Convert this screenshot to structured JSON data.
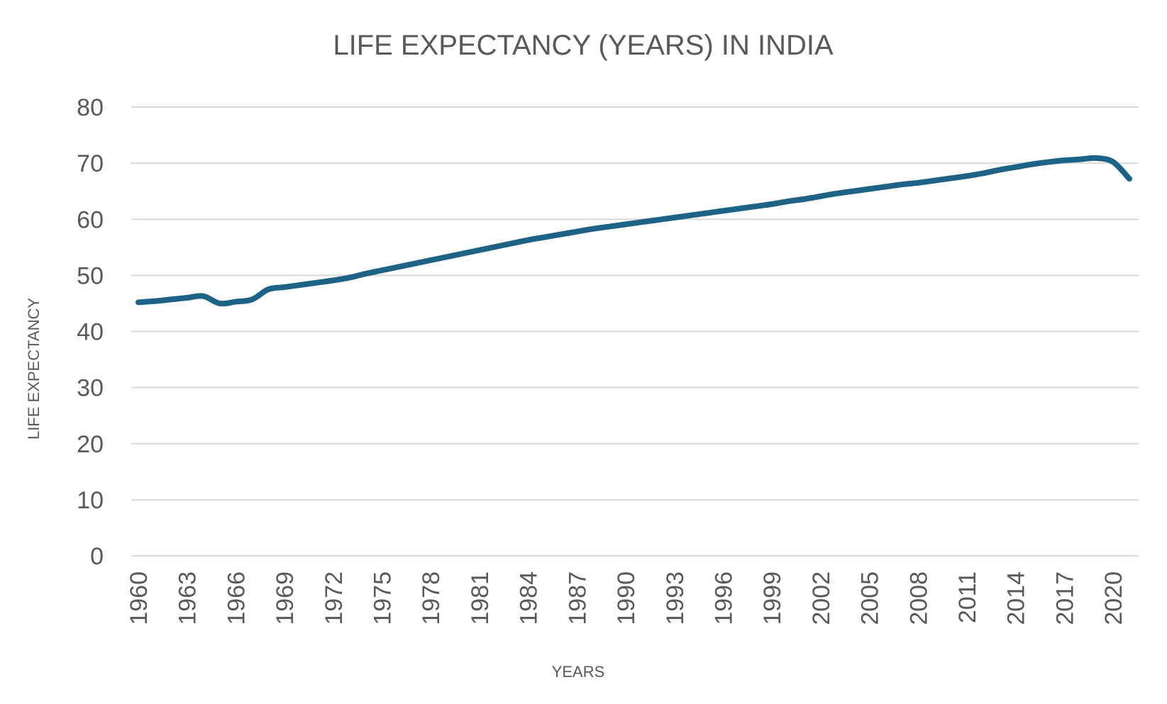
{
  "colors": {
    "series": "#1c6386",
    "text": "#595959",
    "grid": "#d9d9d9",
    "background": "#ffffff"
  },
  "chart_data": {
    "type": "line",
    "title": "LIFE EXPECTANCY (YEARS) IN INDIA",
    "xlabel": "YEARS",
    "ylabel": "LIFE  EXPECTANCY",
    "ylim": [
      0,
      80
    ],
    "yticks": [
      0,
      10,
      20,
      30,
      40,
      50,
      60,
      70,
      80
    ],
    "x_tick_labels": [
      "1960",
      "1963",
      "1966",
      "1969",
      "1972",
      "1975",
      "1978",
      "1981",
      "1984",
      "1987",
      "1990",
      "1993",
      "1996",
      "1999",
      "2002",
      "2005",
      "2008",
      "2011",
      "2014",
      "2017",
      "2020"
    ],
    "grid": true,
    "legend": "none",
    "series": [
      {
        "name": "Life expectancy",
        "x": [
          1960,
          1961,
          1962,
          1963,
          1964,
          1965,
          1966,
          1967,
          1968,
          1969,
          1970,
          1971,
          1972,
          1973,
          1974,
          1975,
          1976,
          1977,
          1978,
          1979,
          1980,
          1981,
          1982,
          1983,
          1984,
          1985,
          1986,
          1987,
          1988,
          1989,
          1990,
          1991,
          1992,
          1993,
          1994,
          1995,
          1996,
          1997,
          1998,
          1999,
          2000,
          2001,
          2002,
          2003,
          2004,
          2005,
          2006,
          2007,
          2008,
          2009,
          2010,
          2011,
          2012,
          2013,
          2014,
          2015,
          2016,
          2017,
          2018,
          2019,
          2020,
          2021
        ],
        "values": [
          45.2,
          45.4,
          45.7,
          46.0,
          46.3,
          45.0,
          45.3,
          45.7,
          47.5,
          47.9,
          48.3,
          48.7,
          49.1,
          49.6,
          50.3,
          50.9,
          51.5,
          52.1,
          52.7,
          53.3,
          53.9,
          54.5,
          55.1,
          55.7,
          56.3,
          56.8,
          57.3,
          57.8,
          58.3,
          58.7,
          59.1,
          59.5,
          59.9,
          60.3,
          60.7,
          61.1,
          61.5,
          61.9,
          62.3,
          62.7,
          63.2,
          63.6,
          64.1,
          64.6,
          65.0,
          65.4,
          65.8,
          66.2,
          66.5,
          66.9,
          67.3,
          67.7,
          68.2,
          68.8,
          69.3,
          69.8,
          70.2,
          70.5,
          70.7,
          70.9,
          70.2,
          67.2
        ]
      }
    ]
  }
}
